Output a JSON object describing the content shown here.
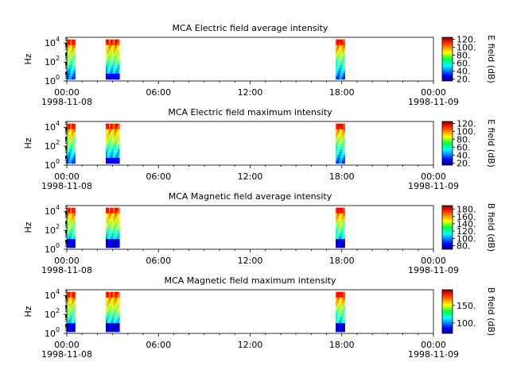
{
  "chart_data": [
    {
      "type": "heatmap",
      "title": "MCA  Electric field average intensity",
      "ylabel": "Hz",
      "ylim": [
        1,
        40000
      ],
      "yscale": "log",
      "yticks": [
        {
          "value": 1,
          "label_base": "10",
          "label_exp": "0"
        },
        {
          "value": 100,
          "label_base": "10",
          "label_exp": "2"
        },
        {
          "value": 10000,
          "label_base": "10",
          "label_exp": "4"
        }
      ],
      "xlim": [
        0,
        24
      ],
      "xticks": [
        {
          "value": 0,
          "label": "00:00",
          "sublabel": "1998-11-08"
        },
        {
          "value": 6,
          "label": "06:00",
          "sublabel": ""
        },
        {
          "value": 12,
          "label": "12:00",
          "sublabel": ""
        },
        {
          "value": 18,
          "label": "18:00",
          "sublabel": ""
        },
        {
          "value": 24,
          "label": "00:00",
          "sublabel": "1998-11-09"
        }
      ],
      "colorbar": {
        "label": "E field (dB)",
        "range": [
          15,
          125
        ],
        "ticks": [
          20,
          40,
          60,
          80,
          100,
          120
        ]
      },
      "bursts": [
        [
          0.0,
          0.55
        ],
        [
          2.55,
          3.45
        ],
        [
          17.6,
          18.2
        ]
      ]
    },
    {
      "type": "heatmap",
      "title": "MCA  Electric field maximum intensity",
      "ylabel": "Hz",
      "ylim": [
        1,
        40000
      ],
      "yscale": "log",
      "yticks": [
        {
          "value": 1,
          "label_base": "10",
          "label_exp": "0"
        },
        {
          "value": 100,
          "label_base": "10",
          "label_exp": "2"
        },
        {
          "value": 10000,
          "label_base": "10",
          "label_exp": "4"
        }
      ],
      "xlim": [
        0,
        24
      ],
      "xticks": [
        {
          "value": 0,
          "label": "00:00",
          "sublabel": "1998-11-08"
        },
        {
          "value": 6,
          "label": "06:00",
          "sublabel": ""
        },
        {
          "value": 12,
          "label": "12:00",
          "sublabel": ""
        },
        {
          "value": 18,
          "label": "18:00",
          "sublabel": ""
        },
        {
          "value": 24,
          "label": "00:00",
          "sublabel": "1998-11-09"
        }
      ],
      "colorbar": {
        "label": "E field (dB)",
        "range": [
          15,
          125
        ],
        "ticks": [
          20,
          40,
          60,
          80,
          100,
          120
        ]
      },
      "bursts": [
        [
          0.0,
          0.55
        ],
        [
          2.55,
          3.45
        ],
        [
          17.6,
          18.2
        ]
      ]
    },
    {
      "type": "heatmap",
      "title": "MCA  Magnetic field average intensity",
      "ylabel": "Hz",
      "ylim": [
        1,
        40000
      ],
      "yscale": "log",
      "yticks": [
        {
          "value": 1,
          "label_base": "10",
          "label_exp": "0"
        },
        {
          "value": 100,
          "label_base": "10",
          "label_exp": "2"
        },
        {
          "value": 10000,
          "label_base": "10",
          "label_exp": "4"
        }
      ],
      "xlim": [
        0,
        24
      ],
      "xticks": [
        {
          "value": 0,
          "label": "00:00",
          "sublabel": "1998-11-08"
        },
        {
          "value": 6,
          "label": "06:00",
          "sublabel": ""
        },
        {
          "value": 12,
          "label": "12:00",
          "sublabel": ""
        },
        {
          "value": 18,
          "label": "18:00",
          "sublabel": ""
        },
        {
          "value": 24,
          "label": "00:00",
          "sublabel": "1998-11-09"
        }
      ],
      "colorbar": {
        "label": "B field (dB)",
        "range": [
          70,
          190
        ],
        "ticks": [
          80,
          100,
          120,
          140,
          160,
          180
        ]
      },
      "bursts": [
        [
          0.0,
          0.55
        ],
        [
          2.55,
          3.45
        ],
        [
          17.6,
          18.2
        ]
      ]
    },
    {
      "type": "heatmap",
      "title": "MCA  Magnetic field maximum intensity",
      "ylabel": "Hz",
      "ylim": [
        1,
        40000
      ],
      "yscale": "log",
      "yticks": [
        {
          "value": 1,
          "label_base": "10",
          "label_exp": "0"
        },
        {
          "value": 100,
          "label_base": "10",
          "label_exp": "2"
        },
        {
          "value": 10000,
          "label_base": "10",
          "label_exp": "4"
        }
      ],
      "xlim": [
        0,
        24
      ],
      "xticks": [
        {
          "value": 0,
          "label": "00:00",
          "sublabel": "1998-11-08"
        },
        {
          "value": 6,
          "label": "06:00",
          "sublabel": ""
        },
        {
          "value": 12,
          "label": "12:00",
          "sublabel": ""
        },
        {
          "value": 18,
          "label": "18:00",
          "sublabel": ""
        },
        {
          "value": 24,
          "label": "00:00",
          "sublabel": "1998-11-09"
        }
      ],
      "colorbar": {
        "label": "B field (dB)",
        "range": [
          70,
          195
        ],
        "ticks": [
          100,
          150
        ]
      },
      "bursts": [
        [
          0.0,
          0.55
        ],
        [
          2.55,
          3.45
        ],
        [
          17.6,
          18.2
        ]
      ]
    }
  ]
}
